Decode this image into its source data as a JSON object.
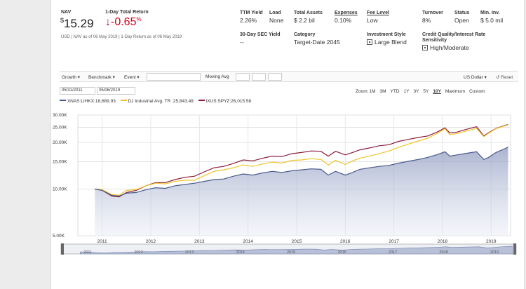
{
  "header": {
    "nav_label": "NAV",
    "nav_currency": "$",
    "nav_value": "15.29",
    "return_label": "1-Day Total Return",
    "return_arrow": "↓",
    "return_value": "-0.65",
    "return_unit": "%",
    "asof": "USD | NAV as of 06 May 2019 | 1-Day Return as of 06 May 2019",
    "negative_color": "#d0021b"
  },
  "stats": [
    {
      "label": "TTM Yield",
      "value": "2.26%"
    },
    {
      "label": "Load",
      "value": "None"
    },
    {
      "label": "Total Assets",
      "value": "$ 2.2 bil"
    },
    {
      "label": "Expenses",
      "value": "0.10%"
    },
    {
      "label": "Fee Level",
      "value": "Low"
    },
    {
      "label": "Turnover",
      "value": "8%"
    },
    {
      "label": "Status",
      "value": "Open"
    },
    {
      "label": "Min. Inv.",
      "value": "$ 5.0 mil"
    },
    {
      "label": "30-Day SEC Yield",
      "value": "--"
    },
    {
      "label": "Category",
      "value": "Target-Date 2045"
    },
    {
      "label": "Investment Style",
      "value": "Large Blend",
      "icon": "style-box-icon"
    },
    {
      "label": "Credit Quality/Interest Rate Sensitivity",
      "value": "High/Moderate",
      "icon": "style-box-icon"
    }
  ],
  "toolbar": {
    "growth": "Growth ▾",
    "benchmark": "Benchmark ▾",
    "event": "Event ▾",
    "moving_avg": "Moving Avg",
    "currency": "US Dollar ▾",
    "reset": "↺ Reset"
  },
  "dates": {
    "start": "05/31/2011",
    "end": "05/06/2019"
  },
  "zoom": {
    "label": "Zoom:",
    "options": [
      "1M",
      "3M",
      "YTD",
      "1Y",
      "3Y",
      "5Y",
      "10Y",
      "Maximum",
      "Custom"
    ],
    "active": "10Y"
  },
  "chart_data": {
    "type": "line",
    "y_scale": "log",
    "ylim": [
      5000,
      30000
    ],
    "y_ticks": [
      "30.00K",
      "25.00K",
      "20.00K",
      "15.00K",
      "10.00K",
      "5.00K"
    ],
    "y_tick_values": [
      30000,
      25000,
      20000,
      15000,
      10000,
      5000
    ],
    "x_ticks": [
      "2011",
      "2012",
      "2013",
      "2014",
      "2015",
      "2016",
      "2017",
      "2018",
      "2019"
    ],
    "x_tick_values": [
      2011,
      2012,
      2013,
      2014,
      2015,
      2016,
      2017,
      2018,
      2019
    ],
    "xlim": [
      2010.5,
      2019.4
    ],
    "grid": true,
    "legend_position": "top-left",
    "series": [
      {
        "name": "XNAS:LIHKX",
        "legend": "XNAS:LIHKX:18,689.93",
        "color": "#4a5a8c",
        "fill": true,
        "x": [
          2010.85,
          2011.0,
          2011.2,
          2011.35,
          2011.5,
          2011.7,
          2011.9,
          2012.1,
          2012.3,
          2012.5,
          2012.7,
          2012.9,
          2013.1,
          2013.3,
          2013.5,
          2013.7,
          2013.9,
          2014.1,
          2014.3,
          2014.5,
          2014.7,
          2014.9,
          2015.1,
          2015.3,
          2015.5,
          2015.65,
          2015.8,
          2016.0,
          2016.15,
          2016.3,
          2016.5,
          2016.7,
          2016.9,
          2017.1,
          2017.3,
          2017.5,
          2017.7,
          2017.9,
          2018.05,
          2018.15,
          2018.3,
          2018.5,
          2018.7,
          2018.85,
          2018.95,
          2019.1,
          2019.3,
          2019.35
        ],
        "y": [
          10000,
          9800,
          9100,
          9000,
          9400,
          9500,
          9900,
          10200,
          10100,
          10500,
          10700,
          10900,
          11200,
          11500,
          11600,
          12100,
          12500,
          12300,
          12700,
          13000,
          12800,
          13100,
          13300,
          13500,
          13400,
          12300,
          13000,
          12300,
          12800,
          13400,
          13700,
          14000,
          14200,
          14700,
          15100,
          15500,
          16000,
          16700,
          17400,
          16300,
          16600,
          17000,
          17400,
          15500,
          16000,
          17200,
          18300,
          18690
        ]
      },
      {
        "name": "DJ Industrial Avg. TR",
        "legend": "DJ Industrial Avg. TR :25,843.49",
        "color": "#f0c428",
        "fill": false,
        "x": [
          2010.85,
          2011.0,
          2011.2,
          2011.35,
          2011.5,
          2011.7,
          2011.9,
          2012.1,
          2012.3,
          2012.5,
          2012.7,
          2012.9,
          2013.1,
          2013.3,
          2013.5,
          2013.7,
          2013.9,
          2014.1,
          2014.3,
          2014.5,
          2014.7,
          2014.9,
          2015.1,
          2015.3,
          2015.5,
          2015.65,
          2015.8,
          2016.0,
          2016.15,
          2016.3,
          2016.5,
          2016.7,
          2016.9,
          2017.1,
          2017.3,
          2017.5,
          2017.7,
          2017.9,
          2018.05,
          2018.15,
          2018.3,
          2018.5,
          2018.7,
          2018.85,
          2018.95,
          2019.1,
          2019.3,
          2019.35
        ],
        "y": [
          10000,
          9900,
          9200,
          9100,
          9800,
          9900,
          10500,
          10900,
          10800,
          11200,
          11400,
          11400,
          12200,
          13000,
          13300,
          13700,
          14300,
          14000,
          14500,
          14900,
          14700,
          15300,
          15400,
          15700,
          15500,
          14300,
          15300,
          14400,
          15200,
          15800,
          16300,
          16900,
          17600,
          18600,
          19500,
          20400,
          21300,
          22900,
          24500,
          22400,
          22800,
          23700,
          24600,
          21800,
          22900,
          24500,
          25700,
          25843
        ]
      },
      {
        "name": "IXUS:SPYZ",
        "legend": "IXUS:SPYZ:26,015.58",
        "color": "#8b1a3a",
        "fill": false,
        "x": [
          2010.85,
          2011.0,
          2011.2,
          2011.35,
          2011.5,
          2011.7,
          2011.9,
          2012.1,
          2012.3,
          2012.5,
          2012.7,
          2012.9,
          2013.1,
          2013.3,
          2013.5,
          2013.7,
          2013.9,
          2014.1,
          2014.3,
          2014.5,
          2014.7,
          2014.9,
          2015.1,
          2015.3,
          2015.5,
          2015.65,
          2015.8,
          2016.0,
          2016.15,
          2016.3,
          2016.5,
          2016.7,
          2016.9,
          2017.1,
          2017.3,
          2017.5,
          2017.7,
          2017.9,
          2018.05,
          2018.15,
          2018.3,
          2018.5,
          2018.7,
          2018.85,
          2018.95,
          2019.1,
          2019.3,
          2019.35
        ],
        "y": [
          10000,
          9800,
          9000,
          8900,
          9500,
          9800,
          10500,
          11000,
          11000,
          11500,
          11900,
          12100,
          12900,
          13700,
          14000,
          14600,
          15400,
          15200,
          15800,
          16300,
          16200,
          16900,
          17200,
          17600,
          17500,
          16300,
          17500,
          16600,
          17200,
          17900,
          18400,
          19000,
          19300,
          20300,
          20900,
          21500,
          22000,
          23400,
          24800,
          23000,
          23300,
          24300,
          25200,
          22000,
          23100,
          24600,
          25800,
          26016
        ]
      }
    ],
    "navigator_ticks": [
      "2011",
      "2012",
      "2013",
      "2014",
      "2015",
      "2016",
      "2017",
      "2018",
      "2019"
    ]
  }
}
